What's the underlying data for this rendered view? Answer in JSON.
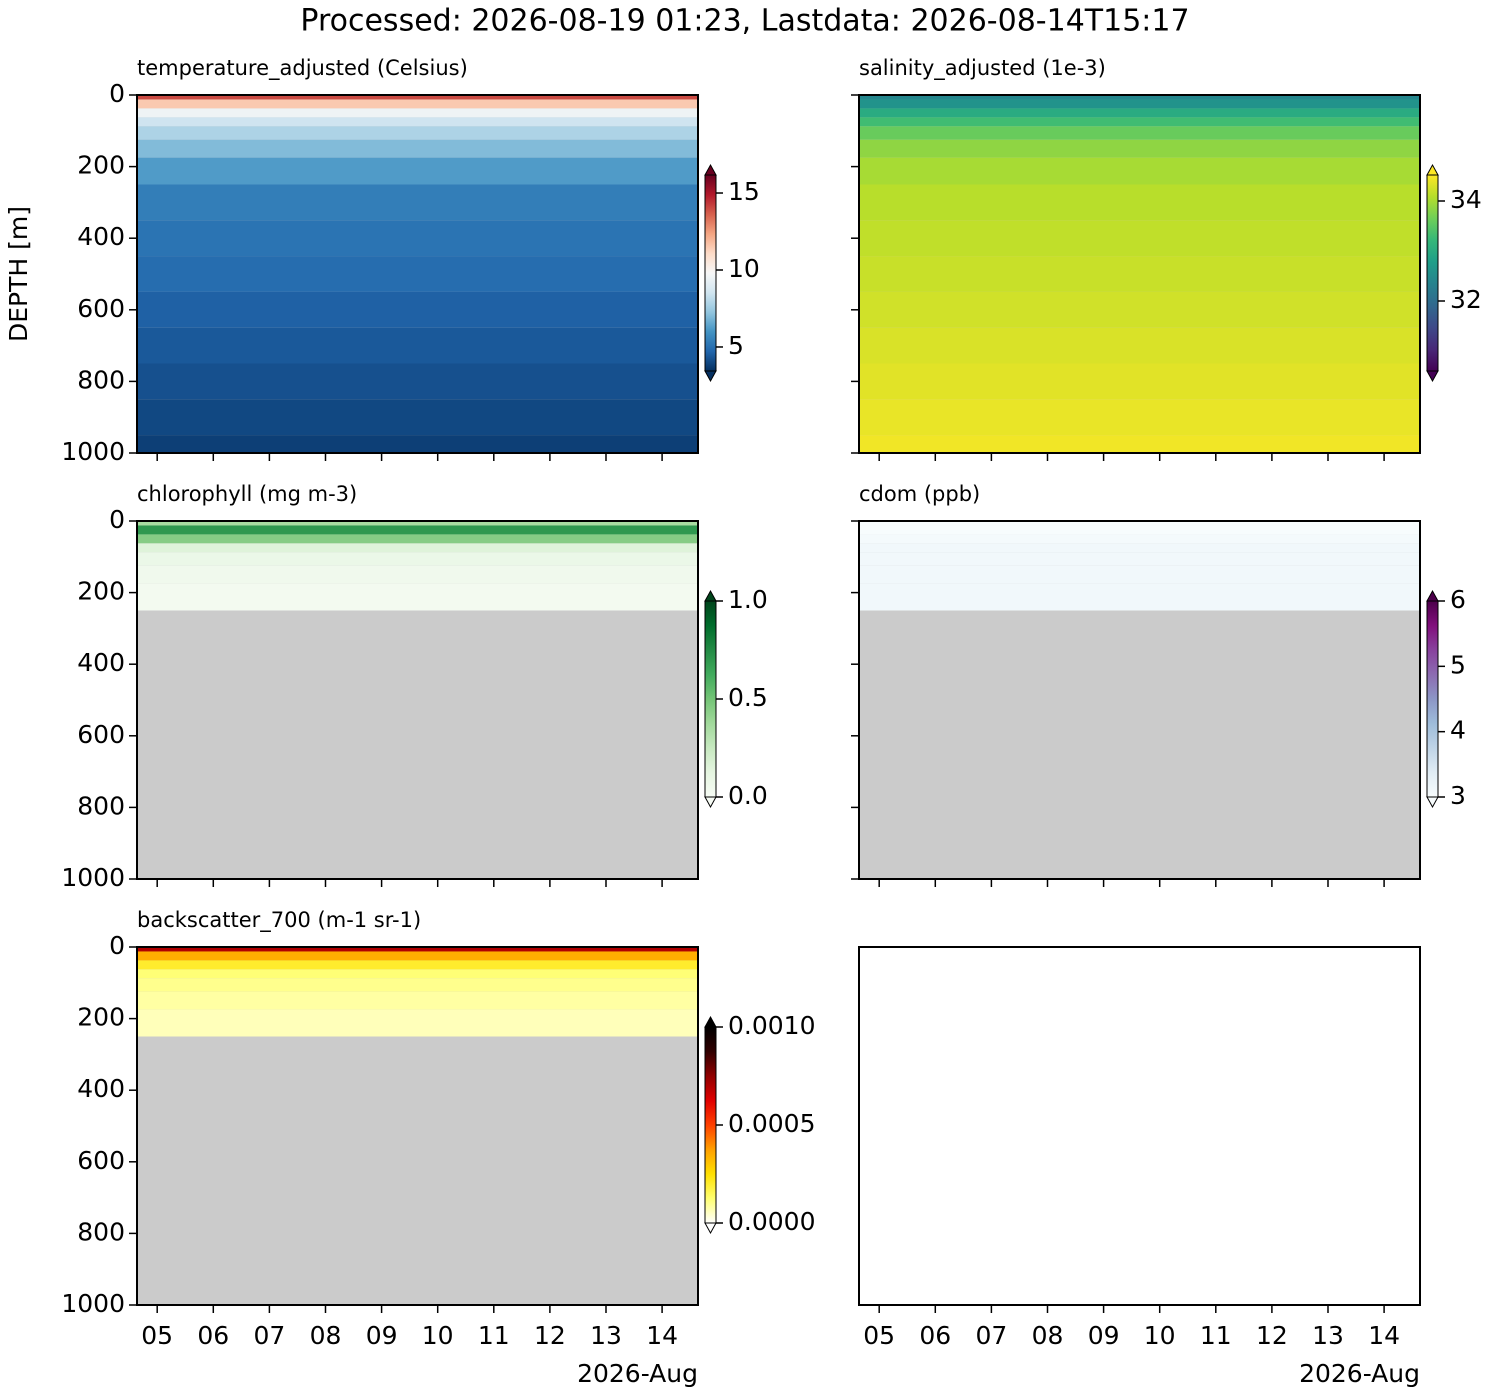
{
  "title": "Processed: 2026-08-19 01:23, Lastdata: 2026-08-14T15:17",
  "chart_data": [
    {
      "type": "heatmap",
      "title": "temperature_adjusted (Celsius)",
      "ylabel": "DEPTH [m]",
      "ylim": [
        1000,
        0
      ],
      "yticks": [
        0,
        200,
        400,
        600,
        800,
        1000
      ],
      "yticklabels": true,
      "xlim": [
        4.64,
        14.64
      ],
      "xticks": [
        {
          "value": 5,
          "label": "05"
        },
        {
          "value": 6,
          "label": "06"
        },
        {
          "value": 7,
          "label": "07"
        },
        {
          "value": 8,
          "label": "08"
        },
        {
          "value": 9,
          "label": "09"
        },
        {
          "value": 10,
          "label": "10"
        },
        {
          "value": 11,
          "label": "11"
        },
        {
          "value": 12,
          "label": "12"
        },
        {
          "value": 13,
          "label": "13"
        },
        {
          "value": 14,
          "label": "14"
        }
      ],
      "xticklabels": false,
      "depths": [
        0,
        25,
        50,
        75,
        100,
        150,
        200,
        300,
        400,
        500,
        600,
        700,
        800,
        900,
        1000
      ],
      "values": [
        14,
        11.5,
        9.5,
        8.5,
        7.8,
        7,
        6.2,
        5.4,
        5.1,
        4.9,
        4.6,
        4.4,
        4.2,
        4,
        3.8
      ],
      "clim": [
        3.44,
        16.17
      ],
      "cticks": [
        5,
        10,
        15
      ],
      "colormap": [
        "#053061",
        "#2166ac",
        "#4393c3",
        "#92c5de",
        "#d1e5f0",
        "#f7f7f7",
        "#fddbc7",
        "#f4a582",
        "#d6604d",
        "#b2182b",
        "#67001f"
      ]
    },
    {
      "type": "heatmap",
      "title": "salinity_adjusted (1e-3)",
      "ylim": [
        1000,
        0
      ],
      "yticks": [
        0,
        200,
        400,
        600,
        800,
        1000
      ],
      "yticklabels": false,
      "xlim": [
        4.64,
        14.64
      ],
      "xticks": [
        {
          "value": 5,
          "label": "05"
        },
        {
          "value": 6,
          "label": "06"
        },
        {
          "value": 7,
          "label": "07"
        },
        {
          "value": 8,
          "label": "08"
        },
        {
          "value": 9,
          "label": "09"
        },
        {
          "value": 10,
          "label": "10"
        },
        {
          "value": 11,
          "label": "11"
        },
        {
          "value": 12,
          "label": "12"
        },
        {
          "value": 13,
          "label": "13"
        },
        {
          "value": 14,
          "label": "14"
        }
      ],
      "xticklabels": false,
      "depths": [
        0,
        25,
        50,
        75,
        100,
        150,
        200,
        300,
        400,
        500,
        600,
        700,
        800,
        900,
        1000
      ],
      "values": [
        32.4,
        32.6,
        33,
        33.3,
        33.6,
        33.85,
        34,
        34.1,
        34.15,
        34.2,
        34.25,
        34.3,
        34.35,
        34.4,
        34.45
      ],
      "clim": [
        30.6,
        34.52
      ],
      "cticks": [
        32,
        34
      ],
      "colormap": [
        "#440154",
        "#482878",
        "#3e4989",
        "#31688e",
        "#26828e",
        "#1f9e89",
        "#35b779",
        "#6ece58",
        "#b5de2b",
        "#fde725"
      ]
    },
    {
      "type": "heatmap",
      "title": "chlorophyll (mg m-3)",
      "ylim": [
        1000,
        0
      ],
      "yticks": [
        0,
        200,
        400,
        600,
        800,
        1000
      ],
      "yticklabels": true,
      "xlim": [
        4.64,
        14.64
      ],
      "xticks": [
        {
          "value": 5,
          "label": "05"
        },
        {
          "value": 6,
          "label": "06"
        },
        {
          "value": 7,
          "label": "07"
        },
        {
          "value": 8,
          "label": "08"
        },
        {
          "value": 9,
          "label": "09"
        },
        {
          "value": 10,
          "label": "10"
        },
        {
          "value": 11,
          "label": "11"
        },
        {
          "value": 12,
          "label": "12"
        },
        {
          "value": 13,
          "label": "13"
        },
        {
          "value": 14,
          "label": "14"
        }
      ],
      "xticklabels": false,
      "depths": [
        0,
        25,
        50,
        75,
        100,
        150,
        200,
        300,
        400,
        500,
        600,
        700,
        800,
        900,
        1000
      ],
      "values": [
        0.35,
        0.7,
        0.45,
        0.15,
        0.08,
        0.05,
        0.03,
        null,
        null,
        null,
        null,
        null,
        null,
        null,
        null
      ],
      "clim": [
        0,
        1
      ],
      "cticks": [
        {
          "value": 0,
          "label": "0.0"
        },
        {
          "value": 0.5,
          "label": "0.5"
        },
        {
          "value": 1,
          "label": "1.0"
        }
      ],
      "colormap": [
        "#f7fcf5",
        "#e5f5e0",
        "#c7e9c0",
        "#a1d99b",
        "#74c476",
        "#41ab5d",
        "#238b45",
        "#006d2c",
        "#00441b"
      ]
    },
    {
      "type": "heatmap",
      "title": "cdom (ppb)",
      "ylim": [
        1000,
        0
      ],
      "yticks": [
        0,
        200,
        400,
        600,
        800,
        1000
      ],
      "yticklabels": false,
      "xlim": [
        4.64,
        14.64
      ],
      "xticks": [
        {
          "value": 5,
          "label": "05"
        },
        {
          "value": 6,
          "label": "06"
        },
        {
          "value": 7,
          "label": "07"
        },
        {
          "value": 8,
          "label": "08"
        },
        {
          "value": 9,
          "label": "09"
        },
        {
          "value": 10,
          "label": "10"
        },
        {
          "value": 11,
          "label": "11"
        },
        {
          "value": 12,
          "label": "12"
        },
        {
          "value": 13,
          "label": "13"
        },
        {
          "value": 14,
          "label": "14"
        }
      ],
      "xticklabels": false,
      "depths": [
        0,
        25,
        50,
        75,
        100,
        150,
        200,
        300,
        400,
        500,
        600,
        700,
        800,
        900,
        1000
      ],
      "values": [
        3,
        3,
        3.05,
        3.1,
        3.1,
        3.1,
        3.1,
        null,
        null,
        null,
        null,
        null,
        null,
        null,
        null
      ],
      "clim": [
        3,
        6
      ],
      "cticks": [
        3,
        4,
        5,
        6
      ],
      "colormap": [
        "#f7fcfd",
        "#e0ecf4",
        "#bfd3e6",
        "#9ebcda",
        "#8c96c6",
        "#8c6bb1",
        "#88419d",
        "#810f7c",
        "#4d004b"
      ]
    },
    {
      "type": "heatmap",
      "title": "backscatter_700 (m-1 sr-1)",
      "ylim": [
        1000,
        0
      ],
      "yticks": [
        0,
        200,
        400,
        600,
        800,
        1000
      ],
      "yticklabels": true,
      "xlim": [
        4.64,
        14.64
      ],
      "xticks": [
        {
          "value": 5,
          "label": "05"
        },
        {
          "value": 6,
          "label": "06"
        },
        {
          "value": 7,
          "label": "07"
        },
        {
          "value": 8,
          "label": "08"
        },
        {
          "value": 9,
          "label": "09"
        },
        {
          "value": 10,
          "label": "10"
        },
        {
          "value": 11,
          "label": "11"
        },
        {
          "value": 12,
          "label": "12"
        },
        {
          "value": 13,
          "label": "13"
        },
        {
          "value": 14,
          "label": "14"
        }
      ],
      "xticklabels": true,
      "xlabel": "2026-Aug",
      "depths": [
        0,
        25,
        50,
        75,
        100,
        150,
        200,
        300,
        400,
        500,
        600,
        700,
        800,
        900,
        1000
      ],
      "values": [
        0.0007,
        0.00035,
        0.0002,
        0.00012,
        0.0001,
        8e-05,
        6e-05,
        null,
        null,
        null,
        null,
        null,
        null,
        null,
        null
      ],
      "clim": [
        0,
        0.001
      ],
      "cticks": [
        {
          "value": 0,
          "label": "0.0000"
        },
        {
          "value": 0.0005,
          "label": "0.0005"
        },
        {
          "value": 0.001,
          "label": "0.0010"
        }
      ],
      "colormap": [
        "#ffffff",
        "#ffff70",
        "#ffe000",
        "#ffa000",
        "#ff4000",
        "#e00000",
        "#900000",
        "#300000",
        "#000000"
      ]
    },
    {
      "type": "empty",
      "xlim": [
        4.64,
        14.64
      ],
      "xticks": [
        {
          "value": 5,
          "label": "05"
        },
        {
          "value": 6,
          "label": "06"
        },
        {
          "value": 7,
          "label": "07"
        },
        {
          "value": 8,
          "label": "08"
        },
        {
          "value": 9,
          "label": "09"
        },
        {
          "value": 10,
          "label": "10"
        },
        {
          "value": 11,
          "label": "11"
        },
        {
          "value": 12,
          "label": "12"
        },
        {
          "value": 13,
          "label": "13"
        },
        {
          "value": 14,
          "label": "14"
        }
      ],
      "xticklabels": true,
      "xlabel": "2026-Aug"
    }
  ]
}
